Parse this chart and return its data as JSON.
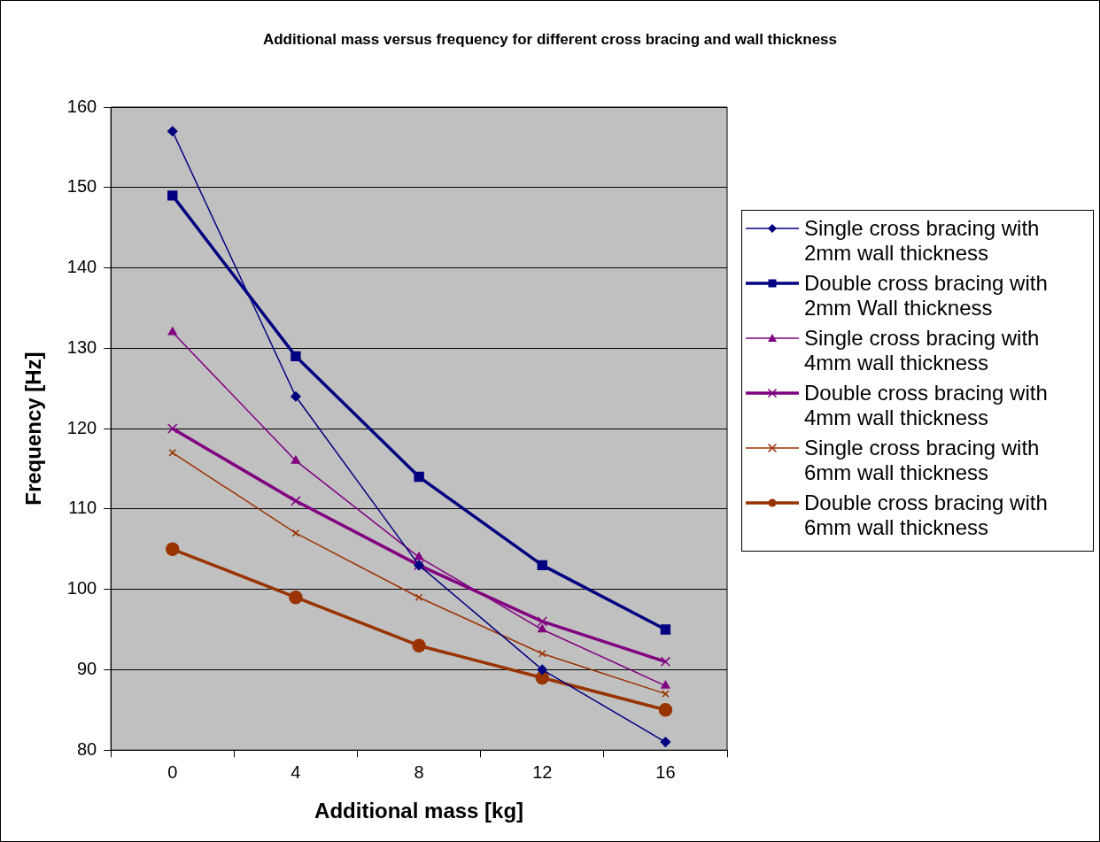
{
  "chart_data": {
    "type": "line",
    "title": "Additional mass versus frequency for different cross bracing and wall thickness",
    "xlabel": "Additional mass [kg]",
    "ylabel": "Frequency [Hz]",
    "categories": [
      "0",
      "4",
      "8",
      "12",
      "16"
    ],
    "series": [
      {
        "name": "Single cross bracing with 2mm wall thickness",
        "color": "#000080",
        "marker": "diamond",
        "values": [
          157,
          124,
          103,
          90,
          81
        ]
      },
      {
        "name": "Double cross bracing with 2mm Wall thickness",
        "color": "#000080",
        "marker": "square",
        "values": [
          149,
          129,
          114,
          103,
          95
        ]
      },
      {
        "name": "Single cross bracing with 4mm wall thickness",
        "color": "#800080",
        "marker": "triangle",
        "values": [
          132,
          116,
          104,
          95,
          88
        ]
      },
      {
        "name": "Double cross bracing with 4mm wall thickness",
        "color": "#800080",
        "marker": "cross",
        "values": [
          120,
          111,
          103,
          96,
          91
        ]
      },
      {
        "name": "Single cross bracing with 6mm wall thickness",
        "color": "#993300",
        "marker": "cross",
        "values": [
          117,
          107,
          99,
          92,
          87
        ]
      },
      {
        "name": "Double cross bracing with 6mm wall thickness",
        "color": "#993300",
        "marker": "circle",
        "values": [
          105,
          99,
          93,
          89,
          85
        ]
      }
    ],
    "ylim": [
      80,
      160
    ],
    "yticks": [
      80,
      90,
      100,
      110,
      120,
      130,
      140,
      150,
      160
    ],
    "grid": "y",
    "legend": "right",
    "line_style": "solid"
  }
}
